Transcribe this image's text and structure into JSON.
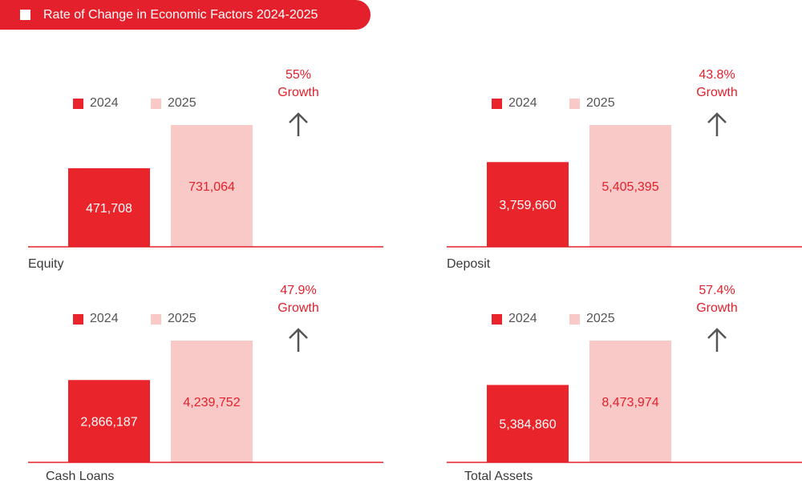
{
  "header": {
    "title": "Rate of Change in Economic Factors 2024-2025"
  },
  "colors": {
    "accent": "#e3202b",
    "bar_2024": "#e9252b",
    "bar_2025": "#f9c9c7",
    "baseline": "#e3202b"
  },
  "chart_data": [
    {
      "type": "bar",
      "title": "Equity",
      "categories": [
        "2024",
        "2025"
      ],
      "values": [
        471708,
        731064
      ],
      "value_labels": [
        "471,708",
        "731,064"
      ],
      "legend": [
        "2024",
        "2025"
      ],
      "growth": {
        "value": "55%",
        "label": "Growth"
      }
    },
    {
      "type": "bar",
      "title": "Deposit",
      "categories": [
        "2024",
        "2025"
      ],
      "values": [
        3759660,
        5405395
      ],
      "value_labels": [
        "3,759,660",
        "5,405,395"
      ],
      "legend": [
        "2024",
        "2025"
      ],
      "growth": {
        "value": "43.8%",
        "label": "Growth"
      }
    },
    {
      "type": "bar",
      "title": "Cash Loans",
      "categories": [
        "2024",
        "2025"
      ],
      "values": [
        2866187,
        4239752
      ],
      "value_labels": [
        "2,866,187",
        "4,239,752"
      ],
      "legend": [
        "2024",
        "2025"
      ],
      "growth": {
        "value": "47.9%",
        "label": "Growth"
      }
    },
    {
      "type": "bar",
      "title": "Total Assets",
      "categories": [
        "2024",
        "2025"
      ],
      "values": [
        5384860,
        8473974
      ],
      "value_labels": [
        "5,384,860",
        "8,473,974"
      ],
      "legend": [
        "2024",
        "2025"
      ],
      "growth": {
        "value": "57.4%",
        "label": "Growth"
      }
    }
  ]
}
